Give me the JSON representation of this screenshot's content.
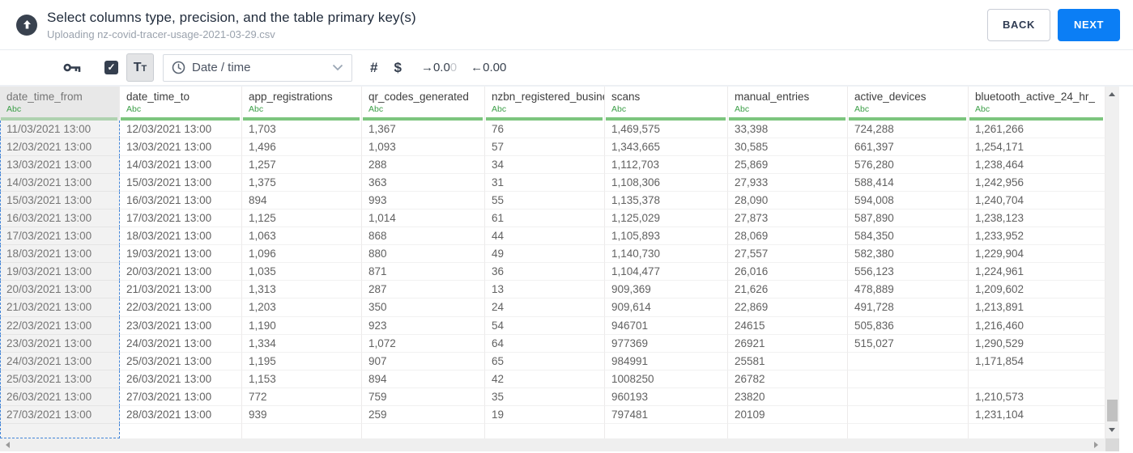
{
  "header": {
    "title": "Select columns type, precision, and the table primary key(s)",
    "subtitle": "Uploading nz-covid-tracer-usage-2021-03-29.csv",
    "back_label": "BACK",
    "next_label": "NEXT"
  },
  "toolbar": {
    "checkbox_checked": "✓",
    "text_type_label": "Tt",
    "type_dropdown_selected": "Date / time",
    "number_glyph": "#",
    "currency_glyph": "$",
    "precision_add": "→0.0",
    "precision_add_muted": "0",
    "precision_remove": "←0.00"
  },
  "colors": {
    "accent_blue": "#0b7ef5",
    "type_green": "#3b9e47",
    "column_bar_green": "#7cc57e",
    "selection_dashed_blue": "#4285d8",
    "dark_slate_icon": "#353f4f"
  },
  "table": {
    "columns": [
      {
        "name": "date_time_from",
        "type": "Abc",
        "selected": true
      },
      {
        "name": "date_time_to",
        "type": "Abc"
      },
      {
        "name": "app_registrations",
        "type": "Abc"
      },
      {
        "name": "qr_codes_generated",
        "type": "Abc"
      },
      {
        "name": "nzbn_registered_busine",
        "type": "Abc"
      },
      {
        "name": "scans",
        "type": "Abc"
      },
      {
        "name": "manual_entries",
        "type": "Abc"
      },
      {
        "name": "active_devices",
        "type": "Abc"
      },
      {
        "name": "bluetooth_active_24_hr_",
        "type": "Abc"
      }
    ],
    "rows": [
      [
        "11/03/2021 13:00",
        "12/03/2021 13:00",
        "1,703",
        "1,367",
        "76",
        "1,469,575",
        "33,398",
        "724,288",
        "1,261,266"
      ],
      [
        "12/03/2021 13:00",
        "13/03/2021 13:00",
        "1,496",
        "1,093",
        "57",
        "1,343,665",
        "30,585",
        "661,397",
        "1,254,171"
      ],
      [
        "13/03/2021 13:00",
        "14/03/2021 13:00",
        "1,257",
        "288",
        "34",
        "1,112,703",
        "25,869",
        "576,280",
        "1,238,464"
      ],
      [
        "14/03/2021 13:00",
        "15/03/2021 13:00",
        "1,375",
        "363",
        "31",
        "1,108,306",
        "27,933",
        "588,414",
        "1,242,956"
      ],
      [
        "15/03/2021 13:00",
        "16/03/2021 13:00",
        "894",
        "993",
        "55",
        "1,135,378",
        "28,090",
        "594,008",
        "1,240,704"
      ],
      [
        "16/03/2021 13:00",
        "17/03/2021 13:00",
        "1,125",
        "1,014",
        "61",
        "1,125,029",
        "27,873",
        "587,890",
        "1,238,123"
      ],
      [
        "17/03/2021 13:00",
        "18/03/2021 13:00",
        "1,063",
        "868",
        "44",
        "1,105,893",
        "28,069",
        "584,350",
        "1,233,952"
      ],
      [
        "18/03/2021 13:00",
        "19/03/2021 13:00",
        "1,096",
        "880",
        "49",
        "1,140,730",
        "27,557",
        "582,380",
        "1,229,904"
      ],
      [
        "19/03/2021 13:00",
        "20/03/2021 13:00",
        "1,035",
        "871",
        "36",
        "1,104,477",
        "26,016",
        "556,123",
        "1,224,961"
      ],
      [
        "20/03/2021 13:00",
        "21/03/2021 13:00",
        "1,313",
        "287",
        "13",
        "909,369",
        "21,626",
        "478,889",
        "1,209,602"
      ],
      [
        "21/03/2021 13:00",
        "22/03/2021 13:00",
        "1,203",
        "350",
        "24",
        "909,614",
        "22,869",
        "491,728",
        "1,213,891"
      ],
      [
        "22/03/2021 13:00",
        "23/03/2021 13:00",
        "1,190",
        "923",
        "54",
        "946701",
        "24615",
        "505,836",
        "1,216,460"
      ],
      [
        "23/03/2021 13:00",
        "24/03/2021 13:00",
        "1,334",
        "1,072",
        "64",
        "977369",
        "26921",
        "515,027",
        "1,290,529"
      ],
      [
        "24/03/2021 13:00",
        "25/03/2021 13:00",
        "1,195",
        "907",
        "65",
        "984991",
        "25581",
        "",
        "1,171,854"
      ],
      [
        "25/03/2021 13:00",
        "26/03/2021 13:00",
        "1,153",
        "894",
        "42",
        "1008250",
        "26782",
        "",
        ""
      ],
      [
        "26/03/2021 13:00",
        "27/03/2021 13:00",
        "772",
        "759",
        "35",
        "960193",
        "23820",
        "",
        "1,210,573"
      ],
      [
        "27/03/2021 13:00",
        "28/03/2021 13:00",
        "939",
        "259",
        "19",
        "797481",
        "20109",
        "",
        "1,231,104"
      ]
    ]
  }
}
